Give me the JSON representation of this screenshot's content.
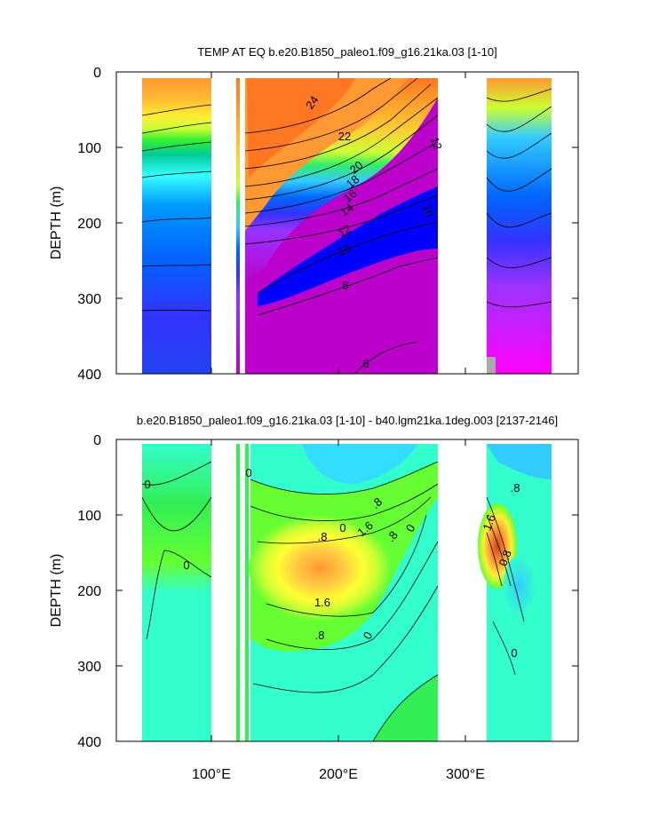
{
  "chart_data": [
    {
      "type": "heatmap",
      "title": "TEMP AT EQ b.e20.B1850_paleo1.f09_g16.21ka.03 [1-10]",
      "ylabel": "DEPTH (m)",
      "xlabel": "",
      "ylim": [
        400,
        0
      ],
      "xlim": [
        28,
        390
      ],
      "y_ticks": [
        "0",
        "100",
        "200",
        "300",
        "400"
      ],
      "x_ticks": [
        "100°E",
        "200°E",
        "300°E"
      ],
      "land_gaps_lon": [
        [
          98,
          118
        ],
        [
          123,
          125
        ],
        [
          128,
          131
        ],
        [
          278,
          318
        ],
        [
          369,
          390
        ]
      ],
      "contour_labels": [
        {
          "text": "24",
          "lon": 150,
          "depth": 30
        },
        {
          "text": "22",
          "lon": 183,
          "depth": 84
        },
        {
          "text": "20",
          "lon": 196,
          "depth": 124
        },
        {
          "text": "18",
          "lon": 193,
          "depth": 143
        },
        {
          "text": "16",
          "lon": 190,
          "depth": 162
        },
        {
          "text": "14",
          "lon": 184,
          "depth": 182
        },
        {
          "text": "12",
          "lon": 180,
          "depth": 210
        },
        {
          "text": "10",
          "lon": 178,
          "depth": 235
        },
        {
          "text": "8",
          "lon": 184,
          "depth": 282
        },
        {
          "text": "6",
          "lon": 222,
          "depth": 386
        },
        {
          "text": "12",
          "lon": 264,
          "depth": 90
        },
        {
          "text": "10",
          "lon": 252,
          "depth": 182
        }
      ],
      "palette": "rainbow",
      "colors": [
        "#ff00ff",
        "#cc00cc",
        "#9933ff",
        "#3333ff",
        "#0066ff",
        "#0099ff",
        "#33ccff",
        "#33ffff",
        "#00cc99",
        "#00cc33",
        "#33ff33",
        "#99ff33",
        "#ccff33",
        "#ffff00",
        "#ffdd33",
        "#ffbb33",
        "#ff9933",
        "#ff7722"
      ]
    },
    {
      "type": "heatmap",
      "title": "b.e20.B1850_paleo1.f09_g16.21ka.03 [1-10] - b40.lgm21ka.1deg.003 [2137-2146]",
      "ylabel": "DEPTH (m)",
      "xlabel": "",
      "ylim": [
        400,
        0
      ],
      "xlim": [
        28,
        390
      ],
      "y_ticks": [
        "0",
        "100",
        "200",
        "300",
        "400"
      ],
      "x_ticks": [
        "100°E",
        "200°E",
        "300°E"
      ],
      "land_gaps_lon": [
        [
          98,
          118
        ],
        [
          123,
          125
        ],
        [
          128,
          131
        ],
        [
          278,
          318
        ],
        [
          369,
          390
        ]
      ],
      "contour_labels": [
        {
          "text": "0",
          "lon": 48,
          "depth": 60
        },
        {
          "text": "0",
          "lon": 73,
          "depth": 168
        },
        {
          "text": "0",
          "lon": 130,
          "depth": 48
        },
        {
          "text": ".8",
          "lon": 198,
          "depth": 135
        },
        {
          "text": "0",
          "lon": 207,
          "depth": 124
        },
        {
          "text": ".8",
          "lon": 230,
          "depth": 106
        },
        {
          "text": "1.6",
          "lon": 222,
          "depth": 122
        },
        {
          "text": ".8",
          "lon": 235,
          "depth": 130
        },
        {
          "text": "0",
          "lon": 255,
          "depth": 122
        },
        {
          "text": "1.6",
          "lon": 186,
          "depth": 212
        },
        {
          "text": ".8",
          "lon": 190,
          "depth": 262
        },
        {
          "text": "0",
          "lon": 227,
          "depth": 261
        },
        {
          "text": ".8",
          "lon": 340,
          "depth": 67
        },
        {
          "text": "1.6",
          "lon": 325,
          "depth": 110
        },
        {
          "text": "0.8",
          "lon": 338,
          "depth": 155
        },
        {
          "text": "0",
          "lon": 332,
          "depth": 287
        }
      ],
      "palette": "rainbow",
      "colors": [
        "#00ccff",
        "#33ddff",
        "#00ffcc",
        "#33ff99",
        "#33ee33",
        "#66ff33",
        "#ccff33",
        "#ffff33",
        "#ffcc44",
        "#ff9933",
        "#ee6622",
        "#cc4411"
      ]
    }
  ]
}
